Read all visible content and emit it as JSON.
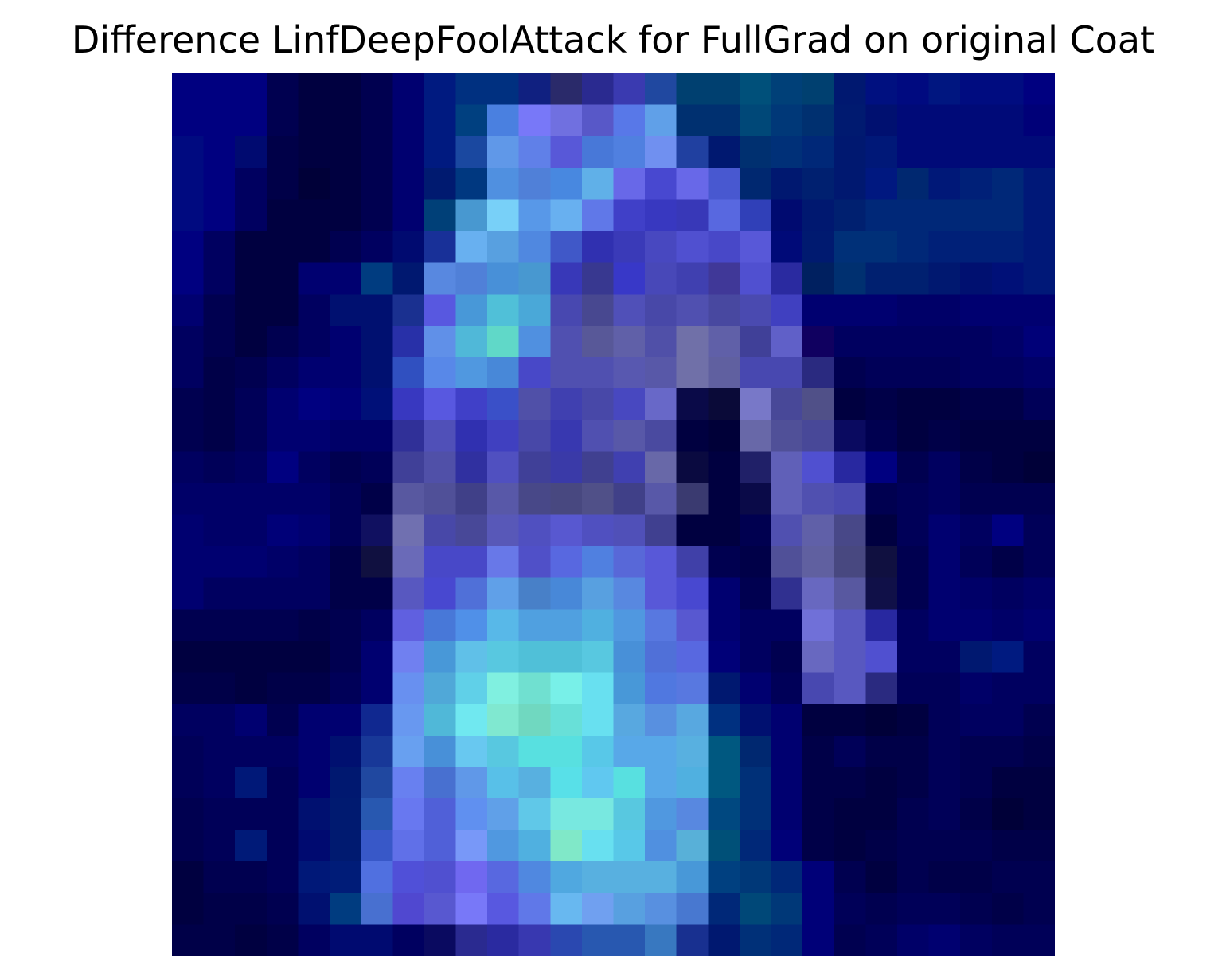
{
  "chart_data": {
    "type": "heatmap",
    "title": "Difference LinfDeepFoolAttack for FullGrad on original Coat",
    "xlabel": "",
    "ylabel": "",
    "axes_visible": false,
    "grid": false,
    "rows": 28,
    "cols": 28,
    "cells": [
      [
        "#000080",
        "#000080",
        "#000080",
        "#000050",
        "#000040",
        "#000040",
        "#000050",
        "#000070",
        "#001a80",
        "#003080",
        "#003080",
        "#102080",
        "#2a2a6a",
        "#2a2a90",
        "#3a3ab0",
        "#2048a0",
        "#004070",
        "#004070",
        "#00507a",
        "#004078",
        "#004070",
        "#001870",
        "#001080",
        "#000a80",
        "#001680",
        "#000c80",
        "#000c80",
        "#000080"
      ],
      [
        "#000080",
        "#000080",
        "#000080",
        "#000050",
        "#000040",
        "#000040",
        "#000050",
        "#000070",
        "#001a80",
        "#004080",
        "#4a80e0",
        "#7878f8",
        "#7070e0",
        "#5858c8",
        "#5878e8",
        "#60a0e8",
        "#003070",
        "#003070",
        "#004878",
        "#003878",
        "#003070",
        "#001a70",
        "#001070",
        "#000a78",
        "#000a78",
        "#000a78",
        "#000a78",
        "#000078"
      ],
      [
        "#000a80",
        "#000080",
        "#000a70",
        "#000048",
        "#000040",
        "#000040",
        "#000050",
        "#000070",
        "#001a80",
        "#1a48a0",
        "#6098e8",
        "#6080e8",
        "#5858d8",
        "#4878d8",
        "#5080e0",
        "#7090f0",
        "#2040a0",
        "#001870",
        "#003070",
        "#003078",
        "#002878",
        "#001870",
        "#001878",
        "#000a78",
        "#000a78",
        "#000a78",
        "#000a78",
        "#000a78"
      ],
      [
        "#000a80",
        "#000080",
        "#000060",
        "#000048",
        "#000038",
        "#000040",
        "#000050",
        "#000070",
        "#001a70",
        "#003880",
        "#5090e0",
        "#5080d8",
        "#4888e0",
        "#60b0e8",
        "#6868e8",
        "#4848d0",
        "#6868e8",
        "#4858d0",
        "#002870",
        "#001870",
        "#002070",
        "#001870",
        "#001880",
        "#002870",
        "#001878",
        "#002078",
        "#002878",
        "#001878"
      ],
      [
        "#000a80",
        "#000080",
        "#000060",
        "#000040",
        "#000040",
        "#000040",
        "#000050",
        "#000070",
        "#004078",
        "#4898d0",
        "#78d0f8",
        "#5898e8",
        "#68b0f0",
        "#6078e8",
        "#4040c8",
        "#3838c0",
        "#3838b8",
        "#5868e0",
        "#3040b8",
        "#000a70",
        "#001870",
        "#002070",
        "#002878",
        "#002878",
        "#002878",
        "#002878",
        "#002878",
        "#001878"
      ],
      [
        "#000080",
        "#000060",
        "#000040",
        "#000040",
        "#000040",
        "#000050",
        "#000060",
        "#000a70",
        "#183098",
        "#68b0f0",
        "#58a0e0",
        "#5088e0",
        "#4058c8",
        "#3030b0",
        "#3a3ab8",
        "#4848c0",
        "#5050d0",
        "#4848c8",
        "#5858d8",
        "#000a78",
        "#001a70",
        "#003078",
        "#003078",
        "#002878",
        "#002078",
        "#002078",
        "#002078",
        "#001878"
      ],
      [
        "#000080",
        "#000060",
        "#000040",
        "#000040",
        "#000070",
        "#000070",
        "#003c80",
        "#001870",
        "#5888e0",
        "#5080d8",
        "#4890d8",
        "#4898d0",
        "#3838b8",
        "#383890",
        "#3838c8",
        "#4848b8",
        "#4040b0",
        "#403898",
        "#5050d0",
        "#2a2aa0",
        "#002060",
        "#003070",
        "#002070",
        "#002070",
        "#001870",
        "#001070",
        "#001078",
        "#001878"
      ],
      [
        "#000070",
        "#000050",
        "#000040",
        "#000040",
        "#000060",
        "#001070",
        "#001070",
        "#1a3090",
        "#5858e0",
        "#4898d8",
        "#50c0d8",
        "#4aa8d8",
        "#4848b0",
        "#484890",
        "#5050b8",
        "#4848a8",
        "#5050b0",
        "#4848a0",
        "#4a4ab0",
        "#4040c0",
        "#000070",
        "#000070",
        "#000070",
        "#000068",
        "#000068",
        "#000070",
        "#000070",
        "#000070"
      ],
      [
        "#000060",
        "#000050",
        "#000040",
        "#000050",
        "#000060",
        "#000070",
        "#001070",
        "#2830a8",
        "#6090e8",
        "#50b8d8",
        "#60d8c8",
        "#5090e0",
        "#5050b0",
        "#585898",
        "#6060a8",
        "#5050a8",
        "#7070a8",
        "#6060a8",
        "#404098",
        "#6060c8",
        "#100060",
        "#000060",
        "#000060",
        "#000060",
        "#000060",
        "#000060",
        "#000068",
        "#000078"
      ],
      [
        "#000060",
        "#000048",
        "#000050",
        "#000060",
        "#000070",
        "#000070",
        "#001070",
        "#3050c0",
        "#5888e8",
        "#5098e0",
        "#4888d8",
        "#4848c8",
        "#5050b0",
        "#5050b0",
        "#5858b0",
        "#5858a8",
        "#7070a8",
        "#6060a0",
        "#4848b0",
        "#4848b0",
        "#2a2a80",
        "#000050",
        "#000058",
        "#000058",
        "#000058",
        "#000060",
        "#000060",
        "#000068"
      ],
      [
        "#000050",
        "#000048",
        "#000058",
        "#000070",
        "#000080",
        "#000078",
        "#001078",
        "#3838c0",
        "#5858e0",
        "#4040c8",
        "#3a50c8",
        "#5050a8",
        "#4040b0",
        "#4848a8",
        "#4848c0",
        "#6868c8",
        "#0a0a48",
        "#0a0a38",
        "#7878c8",
        "#484898",
        "#505088",
        "#000040",
        "#000048",
        "#000040",
        "#000040",
        "#000048",
        "#000048",
        "#000058"
      ],
      [
        "#000050",
        "#000048",
        "#000058",
        "#000070",
        "#000070",
        "#000068",
        "#000068",
        "#303098",
        "#5050b8",
        "#3030b0",
        "#4040c0",
        "#4848a8",
        "#3838b0",
        "#5050b0",
        "#5858a8",
        "#4a4aa0",
        "#000040",
        "#000038",
        "#6868a8",
        "#505098",
        "#484898",
        "#0a0a60",
        "#000050",
        "#000040",
        "#000048",
        "#000040",
        "#000040",
        "#000040"
      ],
      [
        "#000060",
        "#000058",
        "#000060",
        "#000080",
        "#000060",
        "#000050",
        "#000058",
        "#404098",
        "#5050a8",
        "#3030a0",
        "#5050c0",
        "#404098",
        "#3a3aa8",
        "#404090",
        "#4040b0",
        "#6868a8",
        "#0a0a40",
        "#000040",
        "#202068",
        "#6060b8",
        "#5050d0",
        "#2828a0",
        "#000080",
        "#000050",
        "#000060",
        "#000048",
        "#000040",
        "#000038"
      ],
      [
        "#000068",
        "#000068",
        "#000068",
        "#000068",
        "#000068",
        "#000058",
        "#000048",
        "#5858a0",
        "#505098",
        "#404088",
        "#5858a8",
        "#484888",
        "#484880",
        "#505088",
        "#404088",
        "#5858a8",
        "#3a3a70",
        "#000040",
        "#0a0a48",
        "#6060b8",
        "#5050b0",
        "#4a4ab0",
        "#000050",
        "#000058",
        "#000060",
        "#000050",
        "#000050",
        "#000050"
      ],
      [
        "#000070",
        "#000068",
        "#000068",
        "#000078",
        "#000070",
        "#000058",
        "#101060",
        "#7070b0",
        "#4848a8",
        "#484898",
        "#5858b8",
        "#5050c0",
        "#5858d0",
        "#5050c0",
        "#5050b8",
        "#404090",
        "#000040",
        "#000040",
        "#000050",
        "#5050b0",
        "#6060a8",
        "#484888",
        "#000040",
        "#000058",
        "#000070",
        "#000060",
        "#000080",
        "#000058"
      ],
      [
        "#000070",
        "#000070",
        "#000070",
        "#000068",
        "#000060",
        "#000048",
        "#101040",
        "#6a6ab8",
        "#4848c8",
        "#4848c8",
        "#6878e8",
        "#5050c8",
        "#5868e0",
        "#5080e0",
        "#5868d8",
        "#5858d8",
        "#4040a8",
        "#000050",
        "#000048",
        "#505098",
        "#6060a0",
        "#484880",
        "#101040",
        "#000050",
        "#000070",
        "#000058",
        "#000048",
        "#000058"
      ],
      [
        "#000070",
        "#000060",
        "#000060",
        "#000060",
        "#000060",
        "#000048",
        "#000048",
        "#5858c0",
        "#4848d0",
        "#5070d8",
        "#60a0e8",
        "#4880c8",
        "#4888d8",
        "#58a0e0",
        "#5888e0",
        "#5858d8",
        "#4848d0",
        "#000070",
        "#000050",
        "#303090",
        "#6868c0",
        "#5858a0",
        "#101048",
        "#000050",
        "#000070",
        "#000068",
        "#000060",
        "#000068"
      ],
      [
        "#000050",
        "#000050",
        "#000050",
        "#000050",
        "#000048",
        "#000050",
        "#000060",
        "#6060e0",
        "#4878d8",
        "#5090e8",
        "#58b8e8",
        "#50a0e0",
        "#50a0e0",
        "#50b0e0",
        "#5098e0",
        "#5878e0",
        "#5858d0",
        "#000070",
        "#000060",
        "#000060",
        "#7070d8",
        "#5858c0",
        "#2828a0",
        "#000060",
        "#000070",
        "#000070",
        "#000068",
        "#000070"
      ],
      [
        "#000040",
        "#000040",
        "#000040",
        "#000040",
        "#000040",
        "#000050",
        "#000070",
        "#7080f0",
        "#4898d8",
        "#60c0e8",
        "#58c8e0",
        "#50c0d8",
        "#50c0d8",
        "#58c8e0",
        "#4890d8",
        "#5070d8",
        "#5868e0",
        "#000078",
        "#000060",
        "#000050",
        "#6868c0",
        "#5858c0",
        "#5050d0",
        "#000060",
        "#000060",
        "#001870",
        "#001a80",
        "#000060"
      ],
      [
        "#000048",
        "#000048",
        "#000040",
        "#000048",
        "#000048",
        "#000058",
        "#000070",
        "#6890f0",
        "#50a8d8",
        "#60d0e8",
        "#80f0e0",
        "#70e0d0",
        "#78f0e8",
        "#68e0f0",
        "#4898d8",
        "#5078e0",
        "#5878e0",
        "#001870",
        "#000070",
        "#000058",
        "#4848b0",
        "#5858c0",
        "#2a2a80",
        "#000058",
        "#000058",
        "#000068",
        "#000060",
        "#000060"
      ],
      [
        "#000060",
        "#000060",
        "#000070",
        "#000050",
        "#000070",
        "#000070",
        "#102890",
        "#6898f0",
        "#50b8d8",
        "#70e8f0",
        "#80e8d0",
        "#70d8c0",
        "#68e0d8",
        "#68e0f0",
        "#58a8e0",
        "#5890e0",
        "#58a8e0",
        "#003080",
        "#001070",
        "#000070",
        "#000040",
        "#000040",
        "#000038",
        "#000040",
        "#000058",
        "#000060",
        "#000060",
        "#000050"
      ],
      [
        "#000058",
        "#000060",
        "#000060",
        "#000060",
        "#000070",
        "#001070",
        "#183898",
        "#68a0f0",
        "#4890d8",
        "#68c8f0",
        "#58c8e0",
        "#58e0e0",
        "#58e0e0",
        "#58c8e8",
        "#58a8e8",
        "#58a8e8",
        "#58b0e0",
        "#005880",
        "#002870",
        "#000070",
        "#000048",
        "#000058",
        "#000048",
        "#000048",
        "#000058",
        "#000050",
        "#000050",
        "#000048"
      ],
      [
        "#000058",
        "#000060",
        "#001878",
        "#000058",
        "#000070",
        "#001870",
        "#2048a0",
        "#6880f0",
        "#4870d0",
        "#6098e8",
        "#58c0e8",
        "#58b0e0",
        "#58e0e8",
        "#60c8f0",
        "#58e0e0",
        "#58a8e8",
        "#50b0e0",
        "#005880",
        "#003078",
        "#000070",
        "#000048",
        "#000048",
        "#000040",
        "#000048",
        "#000058",
        "#000050",
        "#000040",
        "#000040"
      ],
      [
        "#000050",
        "#000058",
        "#000058",
        "#000058",
        "#001070",
        "#001a70",
        "#2858b0",
        "#6878f0",
        "#5060d8",
        "#6090f0",
        "#60a0e8",
        "#60c8e8",
        "#78e8e0",
        "#78e8e0",
        "#58c8e0",
        "#5098e0",
        "#5888e0",
        "#004880",
        "#003078",
        "#000070",
        "#000048",
        "#000040",
        "#000040",
        "#000050",
        "#000058",
        "#000048",
        "#000038",
        "#000040"
      ],
      [
        "#000050",
        "#000058",
        "#001a78",
        "#000058",
        "#000a70",
        "#001a70",
        "#3858c8",
        "#6070e8",
        "#5060d8",
        "#7898f8",
        "#5098e0",
        "#50b0e0",
        "#80e8c8",
        "#68e0f0",
        "#58c8e8",
        "#5090e0",
        "#58b0d8",
        "#005078",
        "#002878",
        "#000078",
        "#000048",
        "#000040",
        "#000048",
        "#000050",
        "#000050",
        "#000050",
        "#000048",
        "#000048"
      ],
      [
        "#000040",
        "#000050",
        "#000050",
        "#000058",
        "#001878",
        "#001c78",
        "#5070e0",
        "#5050d8",
        "#5050d0",
        "#7068f0",
        "#5868e0",
        "#5088e0",
        "#50a8e0",
        "#58b0e0",
        "#58b0e0",
        "#58b0e0",
        "#4898d8",
        "#004080",
        "#003878",
        "#002878",
        "#000078",
        "#000050",
        "#000040",
        "#000050",
        "#000048",
        "#000048",
        "#000050",
        "#000050"
      ],
      [
        "#000040",
        "#000048",
        "#000048",
        "#000050",
        "#001070",
        "#003c80",
        "#4870d0",
        "#5048d0",
        "#5858d0",
        "#7878f8",
        "#5858e0",
        "#6078e8",
        "#68b8f0",
        "#70a0f0",
        "#58a0e0",
        "#5890e0",
        "#4878d0",
        "#002878",
        "#004878",
        "#003878",
        "#000078",
        "#000058",
        "#000050",
        "#000058",
        "#000058",
        "#000050",
        "#000048",
        "#000050"
      ],
      [
        "#000048",
        "#000048",
        "#000040",
        "#000048",
        "#000060",
        "#000a70",
        "#000a70",
        "#000060",
        "#0a0a60",
        "#2a2a90",
        "#2a2aa0",
        "#3838b0",
        "#2a48b0",
        "#2858b0",
        "#2858b0",
        "#3878c0",
        "#183090",
        "#001870",
        "#003078",
        "#002878",
        "#000078",
        "#000050",
        "#000058",
        "#000068",
        "#000070",
        "#000060",
        "#000058",
        "#000058"
      ]
    ]
  }
}
